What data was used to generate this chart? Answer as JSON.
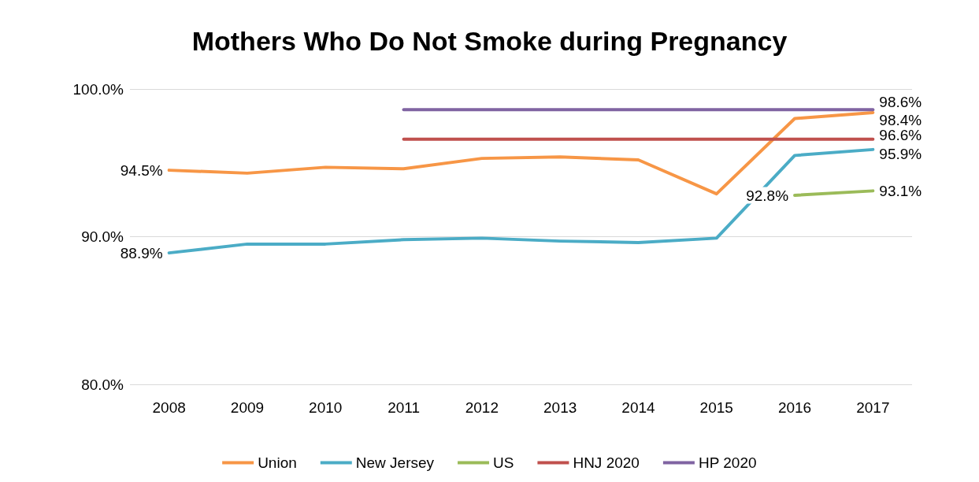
{
  "chart_data": {
    "type": "line",
    "title": "Mothers Who Do Not Smoke during Pregnancy",
    "categories": [
      "2008",
      "2009",
      "2010",
      "2011",
      "2012",
      "2013",
      "2014",
      "2015",
      "2016",
      "2017"
    ],
    "series": [
      {
        "name": "Union",
        "color": "#f79646",
        "values": [
          94.5,
          94.3,
          94.7,
          94.6,
          95.3,
          95.4,
          95.2,
          92.9,
          98.0,
          98.4
        ],
        "value_labels": [
          "94.5%",
          null,
          null,
          null,
          null,
          null,
          null,
          null,
          null,
          "98.4%"
        ]
      },
      {
        "name": "New Jersey",
        "color": "#4bacc6",
        "values": [
          88.9,
          89.5,
          89.5,
          89.8,
          89.9,
          89.7,
          89.6,
          89.9,
          95.5,
          95.9
        ],
        "value_labels": [
          "88.9%",
          null,
          null,
          null,
          null,
          null,
          null,
          null,
          null,
          "95.9%"
        ]
      },
      {
        "name": "US",
        "color": "#9bbb59",
        "values": [
          null,
          null,
          null,
          null,
          null,
          null,
          null,
          null,
          92.8,
          93.1
        ],
        "value_labels": [
          null,
          null,
          null,
          null,
          null,
          null,
          null,
          null,
          "92.8%",
          "93.1%"
        ]
      },
      {
        "name": "HNJ 2020",
        "color": "#c0504d",
        "values": [
          null,
          null,
          null,
          96.6,
          96.6,
          96.6,
          96.6,
          96.6,
          96.6,
          96.6
        ],
        "value_labels": [
          null,
          null,
          null,
          null,
          null,
          null,
          null,
          null,
          null,
          "96.6%"
        ]
      },
      {
        "name": "HP 2020",
        "color": "#8064a2",
        "values": [
          null,
          null,
          null,
          98.6,
          98.6,
          98.6,
          98.6,
          98.6,
          98.6,
          98.6
        ],
        "value_labels": [
          null,
          null,
          null,
          null,
          null,
          null,
          null,
          null,
          null,
          "98.6%"
        ]
      }
    ],
    "ylim": [
      80,
      100
    ],
    "yticks": [
      {
        "value": 80,
        "label": "80.0%"
      },
      {
        "value": 90,
        "label": "90.0%"
      },
      {
        "value": 100,
        "label": "100.0%"
      }
    ],
    "grid": "y",
    "legend": "bottom",
    "marker": "none",
    "line_style": "solid"
  }
}
